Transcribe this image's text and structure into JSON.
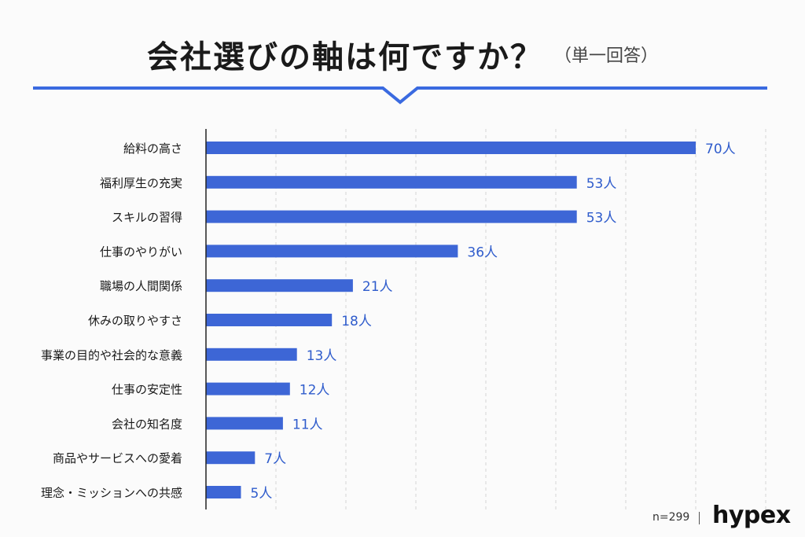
{
  "title": "会社選びの軸は何ですか？",
  "subtitle": "（単一回答）",
  "footer": {
    "n_label": "n=299",
    "logo": "hypex"
  },
  "colors": {
    "bar": "#3d66d6",
    "value": "#2f5ccc",
    "accent_rule": "#3a6ae0",
    "grid": "#d6d6d6"
  },
  "chart_data": {
    "type": "bar",
    "orientation": "horizontal",
    "categories": [
      "給料の高さ",
      "福利厚生の充実",
      "スキルの習得",
      "仕事のやりがい",
      "職場の人間関係",
      "休みの取りやすさ",
      "事業の目的や社会的な意義",
      "仕事の安定性",
      "会社の知名度",
      "商品やサービスへの愛着",
      "理念・ミッションへの共感"
    ],
    "values": [
      70,
      53,
      53,
      36,
      21,
      18,
      13,
      12,
      11,
      7,
      5
    ],
    "value_labels": [
      "70人",
      "53人",
      "53人",
      "36人",
      "21人",
      "18人",
      "13人",
      "12人",
      "11人",
      "7人",
      "5人"
    ],
    "unit": "人",
    "xlim": [
      0,
      80
    ],
    "grid": true
  }
}
